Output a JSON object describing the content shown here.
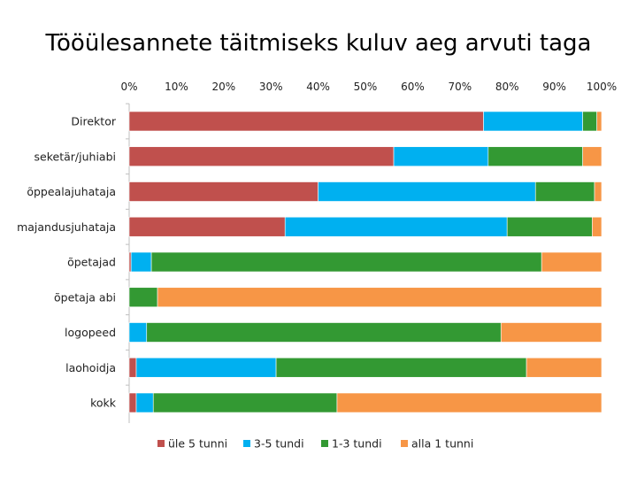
{
  "chart_data": {
    "type": "bar",
    "orientation": "horizontal",
    "stacked": true,
    "title": "Tööülesannete täitmiseks kuluv aeg arvuti taga",
    "xlabel": "",
    "ylabel": "",
    "xlim": [
      0,
      100
    ],
    "x_ticks": [
      "0%",
      "10%",
      "20%",
      "30%",
      "40%",
      "50%",
      "60%",
      "70%",
      "80%",
      "90%",
      "100%"
    ],
    "grid": false,
    "legend_position": "bottom",
    "categories": [
      "Direktor",
      "seketär/juhiabi",
      "õppealajuhataja",
      "majandusjuhataja",
      "õpetajad",
      "õpetaja abi",
      "logopeed",
      "laohoidja",
      "kokk"
    ],
    "series": [
      {
        "name": "üle 5 tunni",
        "color": "#C0504D",
        "values": [
          75,
          56,
          40,
          33,
          0.4,
          0,
          0,
          1.5,
          1.5
        ]
      },
      {
        "name": "3-5 tundi",
        "color": "#00B0F0",
        "values": [
          21,
          20,
          46,
          47,
          4.3,
          0,
          3.7,
          29.6,
          3.6
        ]
      },
      {
        "name": "1-3 tundi",
        "color": "#339933",
        "values": [
          3,
          20,
          12.5,
          18,
          82.6,
          6,
          75,
          53,
          38.9
        ]
      },
      {
        "name": "alla 1 tunni",
        "color": "#F79646",
        "values": [
          1,
          4,
          1.5,
          2,
          12.7,
          94,
          21.3,
          15.9,
          56
        ]
      }
    ]
  }
}
